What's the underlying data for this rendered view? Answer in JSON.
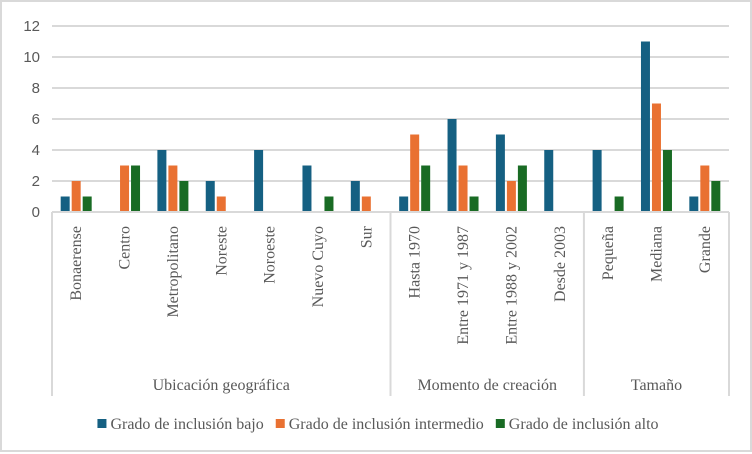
{
  "chart_data": {
    "type": "bar",
    "title": "",
    "xlabel": "",
    "ylabel": "",
    "ylim": [
      0,
      12
    ],
    "yticks": [
      0,
      2,
      4,
      6,
      8,
      10,
      12
    ],
    "grid": true,
    "legend_position": "bottom",
    "categories": [
      "Bonaerense",
      "Centro",
      "Metropolitano",
      "Noreste",
      "Noroeste",
      "Nuevo Cuyo",
      "Sur",
      "Hasta 1970",
      "Entre 1971 y 1987",
      "Entre 1988 y 2002",
      "Desde 2003",
      "Pequeña",
      "Mediana",
      "Grande"
    ],
    "groups": [
      {
        "label": "Ubicación geográfica",
        "count": 7
      },
      {
        "label": "Momento de creación",
        "count": 4
      },
      {
        "label": "Tamaño",
        "count": 3
      }
    ],
    "series": [
      {
        "name": "Grado de inclusión bajo",
        "color": "#156082",
        "values": [
          1,
          0,
          4,
          2,
          4,
          3,
          2,
          1,
          6,
          5,
          4,
          4,
          11,
          1
        ]
      },
      {
        "name": "Grado de inclusión intermedio",
        "color": "#E97132",
        "values": [
          2,
          3,
          3,
          1,
          0,
          0,
          1,
          5,
          3,
          2,
          0,
          0,
          7,
          3
        ]
      },
      {
        "name": "Grado de inclusión alto",
        "color": "#196B24",
        "values": [
          1,
          3,
          2,
          0,
          0,
          1,
          0,
          3,
          1,
          3,
          0,
          1,
          4,
          2
        ]
      }
    ]
  }
}
